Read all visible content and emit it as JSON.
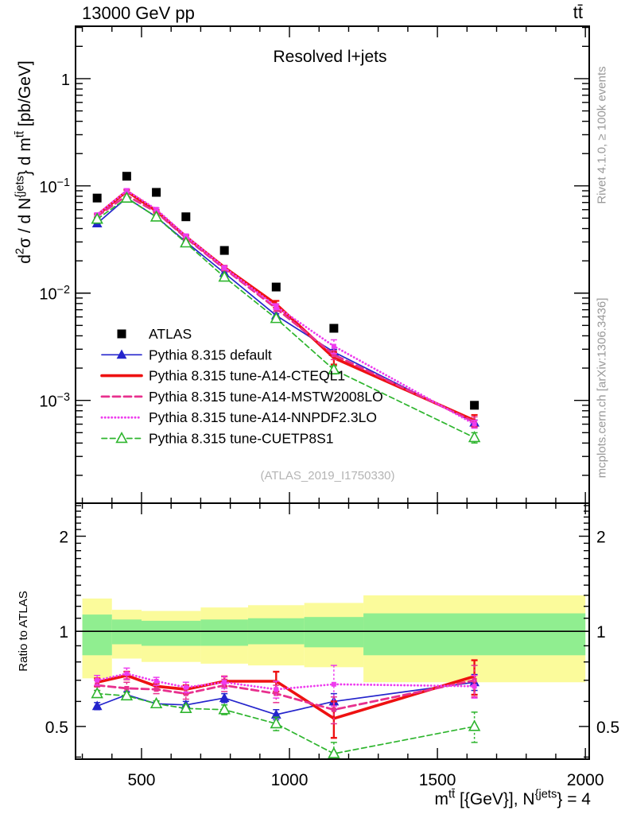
{
  "header": {
    "left": "13000 GeV pp",
    "right": "tt̄"
  },
  "side_notes": {
    "rivet": "Rivet 4.1.0, ≥ 100k events",
    "mcplots": "mcplots.cern.ch [arXiv:1306.3436]"
  },
  "watermark": "(ATLAS_2019_I1750330)",
  "chart_data": {
    "type": "line",
    "title": "Resolved l+jets",
    "ratio_label": "Ratio to ATLAS",
    "xlabel_rich": [
      {
        "t": "m"
      },
      {
        "t": "tt̄",
        "sup": 1
      },
      {
        "t": " [{GeV}], N"
      },
      {
        "t": "{jets",
        "sup": 1
      },
      {
        "t": "} = 4"
      }
    ],
    "ylabel_rich": [
      {
        "t": "d"
      },
      {
        "t": "2",
        "sup": 1
      },
      {
        "t": "σ /  d N"
      },
      {
        "t": "{jets",
        "sup": 1
      },
      {
        "t": "} d m"
      },
      {
        "t": "tt̄",
        "sup": 1
      },
      {
        "t": " [pb/GeV]"
      }
    ],
    "xlim": [
      277,
      2013
    ],
    "main_ylim": [
      0.00011,
      3.08
    ],
    "ratio_ylim": [
      0.394,
      2.544
    ],
    "x_ticks": [
      {
        "v": 500,
        "label": "500"
      },
      {
        "v": 1000,
        "label": "1000"
      },
      {
        "v": 1500,
        "label": "1500"
      },
      {
        "v": 2000,
        "label": "2000"
      }
    ],
    "x_minor_step": 100,
    "y_main_ticks": [
      {
        "v": 1,
        "label": "1"
      },
      {
        "v": 0.1,
        "label": "10^−1"
      },
      {
        "v": 0.01,
        "label": "10^−2"
      },
      {
        "v": 0.001,
        "label": "10^−3"
      }
    ],
    "y_ratio_ticks": [
      {
        "v": 2,
        "label": "2"
      },
      {
        "v": 1,
        "label": "1"
      },
      {
        "v": 0.5,
        "label": "0.5"
      }
    ],
    "bin_edges": [
      300,
      400,
      500,
      600,
      700,
      860,
      1050,
      1250,
      2000
    ],
    "x": [
      350,
      450,
      550,
      650,
      780,
      955,
      1150,
      1625
    ],
    "reference": {
      "name": "ATLAS",
      "color": "#000000",
      "marker": "square",
      "values": [
        0.077,
        0.123,
        0.087,
        0.0515,
        0.025,
        0.0114,
        0.0047,
        0.0009
      ]
    },
    "series": [
      {
        "name": "Pythia 8.315 default",
        "color": "#2424cc",
        "line": "solid",
        "width": 1.7,
        "marker": "triangle-filled",
        "values": [
          0.0447,
          0.0775,
          0.0513,
          0.0301,
          0.0154,
          0.0062,
          0.00282,
          0.00062
        ],
        "ratio": [
          0.58,
          0.63,
          0.59,
          0.585,
          0.615,
          0.545,
          0.6,
          0.69
        ],
        "ratio_err": [
          0.015,
          0.015,
          0.012,
          0.015,
          0.02,
          0.02,
          0.035,
          0.04
        ]
      },
      {
        "name": "Pythia 8.315 tune-A14-CTEQL1",
        "color": "#ee1111",
        "line": "solid",
        "width": 3.6,
        "marker": "none",
        "values": [
          0.0531,
          0.0892,
          0.0583,
          0.0337,
          0.0174,
          0.0079,
          0.00249,
          0.00065
        ],
        "ratio": [
          0.69,
          0.725,
          0.67,
          0.655,
          0.695,
          0.695,
          0.53,
          0.72
        ],
        "ratio_err": [
          0.02,
          0.02,
          0.015,
          0.02,
          0.025,
          0.05,
          0.07,
          0.09
        ]
      },
      {
        "name": "Pythia 8.315 tune-A14-MSTW2008LO",
        "color": "#e8308e",
        "line": "dashed",
        "width": 2.8,
        "marker": "square-small",
        "values": [
          0.052,
          0.0812,
          0.057,
          0.0327,
          0.0169,
          0.0072,
          0.00266,
          0.00063
        ],
        "ratio": [
          0.675,
          0.66,
          0.655,
          0.635,
          0.675,
          0.635,
          0.565,
          0.7
        ],
        "ratio_err": [
          0.025,
          0.03,
          0.02,
          0.025,
          0.03,
          0.04,
          0.055,
          0.08
        ]
      },
      {
        "name": "Pythia 8.315 tune-A14-NNPDF2.3LO",
        "color": "#ee3cee",
        "line": "dotted",
        "width": 2.8,
        "marker": "square-small",
        "values": [
          0.0539,
          0.0904,
          0.0605,
          0.0342,
          0.0173,
          0.0075,
          0.0032,
          0.0006
        ],
        "ratio": [
          0.7,
          0.735,
          0.695,
          0.665,
          0.69,
          0.655,
          0.68,
          0.67
        ],
        "ratio_err": [
          0.025,
          0.03,
          0.02,
          0.025,
          0.03,
          0.04,
          0.1,
          0.055
        ]
      },
      {
        "name": "Pythia 8.315 tune-CUETP8S1",
        "color": "#2eb52e",
        "line": "dashed",
        "width": 1.7,
        "marker": "triangle-open",
        "values": [
          0.0489,
          0.0769,
          0.0513,
          0.0294,
          0.0141,
          0.0058,
          0.00193,
          0.00045
        ],
        "ratio": [
          0.635,
          0.625,
          0.59,
          0.57,
          0.565,
          0.51,
          0.41,
          0.5
        ],
        "ratio_err": [
          0.015,
          0.015,
          0.012,
          0.015,
          0.02,
          0.025,
          0.035,
          0.055
        ]
      }
    ],
    "uncertainty_bands": {
      "outer_color": "#fbfb9b",
      "inner_color": "#90ee90",
      "bins": [
        {
          "x0": 300,
          "x1": 400,
          "outer": [
            0.71,
            1.27
          ],
          "inner": [
            0.84,
            1.13
          ]
        },
        {
          "x0": 400,
          "x1": 500,
          "outer": [
            0.82,
            1.17
          ],
          "inner": [
            0.91,
            1.09
          ]
        },
        {
          "x0": 500,
          "x1": 700,
          "outer": [
            0.8,
            1.16
          ],
          "inner": [
            0.9,
            1.08
          ]
        },
        {
          "x0": 700,
          "x1": 860,
          "outer": [
            0.79,
            1.19
          ],
          "inner": [
            0.9,
            1.09
          ]
        },
        {
          "x0": 860,
          "x1": 1050,
          "outer": [
            0.78,
            1.21
          ],
          "inner": [
            0.91,
            1.1
          ]
        },
        {
          "x0": 1050,
          "x1": 1250,
          "outer": [
            0.77,
            1.23
          ],
          "inner": [
            0.89,
            1.11
          ]
        },
        {
          "x0": 1250,
          "x1": 2000,
          "outer": [
            0.69,
            1.3
          ],
          "inner": [
            0.84,
            1.14
          ]
        }
      ]
    },
    "legend_position": "center-left",
    "grid": false
  }
}
